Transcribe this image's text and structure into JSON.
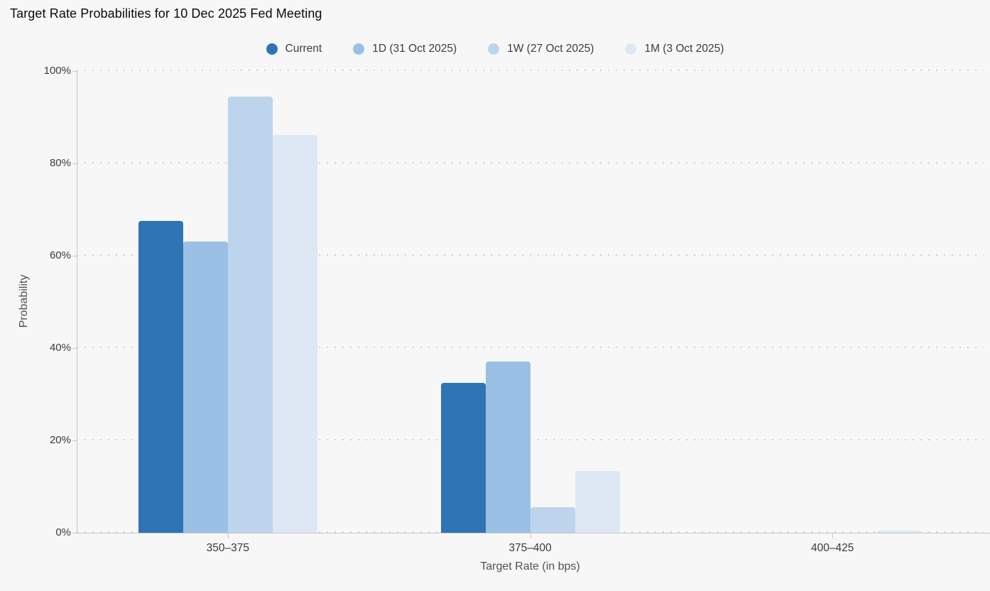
{
  "title": "Target Rate Probabilities for 10 Dec 2025 Fed Meeting",
  "colors": {
    "background": "#f7f7f7",
    "axis": "#c7c7c7",
    "grid_dots": "#d3d3d3",
    "series": {
      "current": "#2F74B5",
      "one_day": "#9AC1E5",
      "one_week": "#BDD5EC",
      "one_month": "#DEE8F4"
    }
  },
  "chart_data": {
    "type": "bar",
    "title": "Target Rate Probabilities for 10 Dec 2025 Fed Meeting",
    "categories": [
      "350–375",
      "375–400",
      "400–425"
    ],
    "series": [
      {
        "name": "Current",
        "color": "#2F74B5",
        "values": [
          67.5,
          32.5,
          0.0
        ]
      },
      {
        "name": "1D (31 Oct 2025)",
        "color": "#9AC1E5",
        "values": [
          63.0,
          37.0,
          0.0
        ]
      },
      {
        "name": "1W (27 Oct 2025)",
        "color": "#BDD5EC",
        "values": [
          94.4,
          5.6,
          0.0
        ]
      },
      {
        "name": "1M (3 Oct 2025)",
        "color": "#DEE8F4",
        "values": [
          86.1,
          13.4,
          0.5
        ]
      }
    ],
    "xlabel": "Target Rate (in bps)",
    "ylabel": "Probability",
    "ylim": [
      0,
      100
    ],
    "yticks": [
      0,
      20,
      40,
      60,
      80,
      100
    ],
    "ytick_labels": [
      "0%",
      "20%",
      "40%",
      "60%",
      "80%",
      "100%"
    ],
    "grid": "dotted-horizontal",
    "legend_position": "top-center"
  }
}
